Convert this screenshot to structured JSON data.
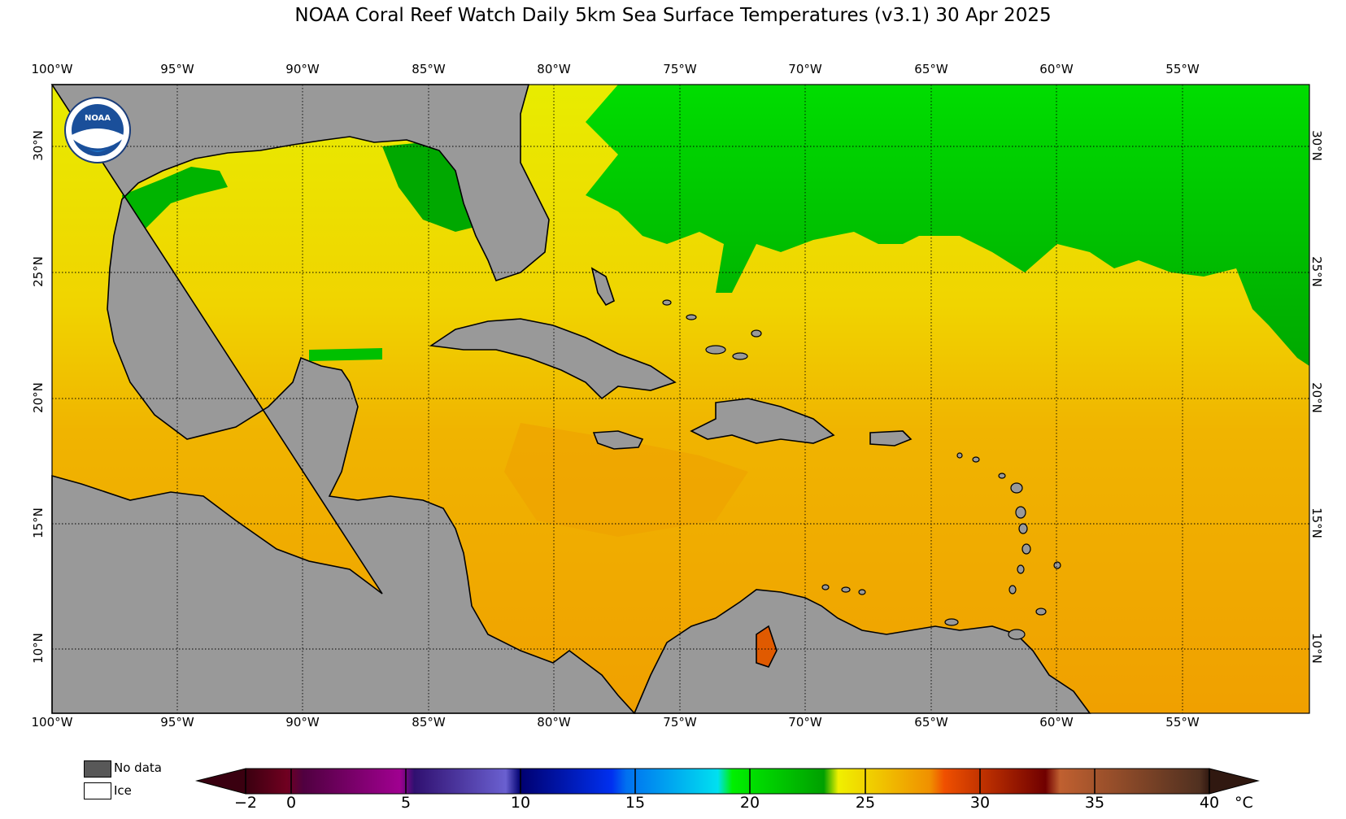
{
  "title": "NOAA Coral Reef Watch Daily 5km Sea Surface Temperatures  (v3.1)   30 Apr 2025",
  "longitude_labels": [
    "100°W",
    "95°W",
    "90°W",
    "85°W",
    "80°W",
    "75°W",
    "70°W",
    "65°W",
    "60°W",
    "55°W"
  ],
  "latitude_labels": [
    "30°N",
    "25°N",
    "20°N",
    "15°N",
    "10°N"
  ],
  "logo": {
    "text": "NOAA",
    "ring_text": "NATIONAL OCEANIC AND ATMOSPHERIC ADMINISTRATION · U.S. DEPARTMENT OF COMMERCE"
  },
  "legend": {
    "no_data_label": "No data",
    "ice_label": "Ice"
  },
  "colorbar": {
    "ticks": [
      "−2",
      "0",
      "5",
      "10",
      "15",
      "20",
      "25",
      "30",
      "35",
      "40"
    ],
    "unit": "°C"
  },
  "colors": {
    "land": "#999999",
    "no_data": "#585858",
    "ice": "#ffffff",
    "cool_green": "#00cc00",
    "warm_yellow": "#f0f000",
    "warm_orange": "#f0a800",
    "hot_orange": "#e05a00"
  }
}
